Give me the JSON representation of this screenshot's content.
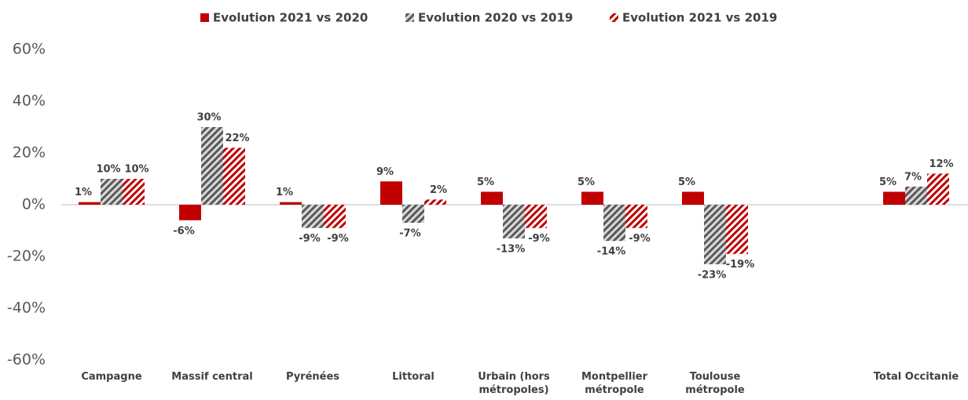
{
  "chart_data": {
    "type": "bar",
    "categories": [
      "Campagne",
      "Massif central",
      "Pyrénées",
      "Littoral",
      "Urbain (hors métropoles)",
      "Montpellier métropole",
      "Toulouse métropole",
      null,
      "Total Occitanie"
    ],
    "series": [
      {
        "name": "Evolution 2021 vs 2020",
        "color": "#c00000",
        "hatch": false,
        "values": [
          1,
          -6,
          1,
          9,
          5,
          5,
          5,
          null,
          5
        ],
        "value_labels": [
          "1%",
          "-6%",
          "1%",
          "9%",
          "5%",
          "5%",
          "5%",
          null,
          "5%"
        ]
      },
      {
        "name": "Evolution 2020 vs 2019",
        "color": "#595959",
        "hatch": true,
        "values": [
          10,
          30,
          -9,
          -7,
          -13,
          -14,
          -23,
          null,
          7
        ],
        "value_labels": [
          "10%",
          "30%",
          "-9%",
          "-7%",
          "-13%",
          "-14%",
          "-23%",
          null,
          "7%"
        ]
      },
      {
        "name": "Evolution 2021 vs  2019",
        "color": "#c00000",
        "hatch": true,
        "values": [
          10,
          22,
          -9,
          2,
          -9,
          -9,
          -19,
          null,
          12
        ],
        "value_labels": [
          "10%",
          "22%",
          "-9%",
          "2%",
          "-9%",
          "-9%",
          "-19%",
          null,
          "12%"
        ]
      }
    ],
    "ylim": [
      -60,
      60
    ],
    "yticks": [
      {
        "value": -60,
        "label": "-60%"
      },
      {
        "value": -40,
        "label": "-40%"
      },
      {
        "value": -20,
        "label": "-20%"
      },
      {
        "value": 0,
        "label": "0%"
      },
      {
        "value": 20,
        "label": "20%"
      },
      {
        "value": 40,
        "label": "40%"
      },
      {
        "value": 60,
        "label": "60%"
      }
    ],
    "grid": false,
    "legend": "top"
  }
}
